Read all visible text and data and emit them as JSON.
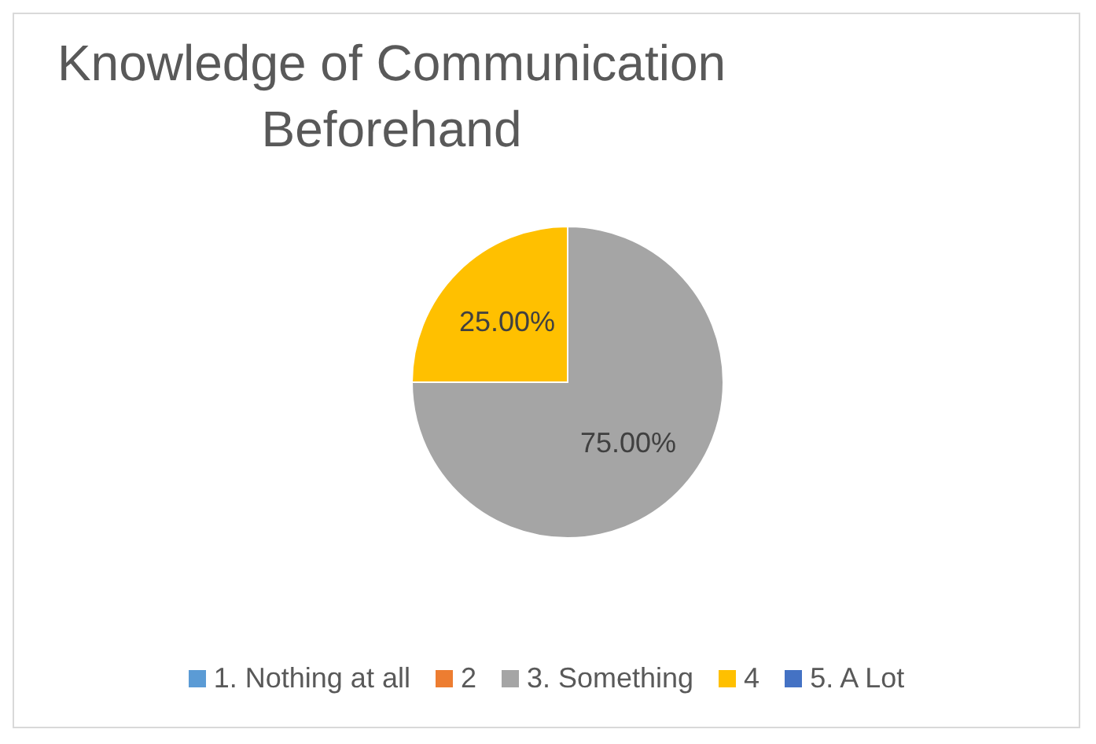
{
  "chart_data": {
    "type": "pie",
    "title": "Knowledge of Communication Beforehand",
    "categories": [
      "1. Nothing at all",
      "2",
      "3. Something",
      "4",
      "5. A Lot"
    ],
    "values": [
      0,
      0,
      75,
      25,
      0
    ],
    "colors": [
      "#5b9bd5",
      "#ed7d31",
      "#a5a5a5",
      "#ffc000",
      "#4472c4"
    ],
    "value_labels": [
      null,
      null,
      "75.00%",
      "25.00%",
      null
    ],
    "legend": "bottom"
  }
}
